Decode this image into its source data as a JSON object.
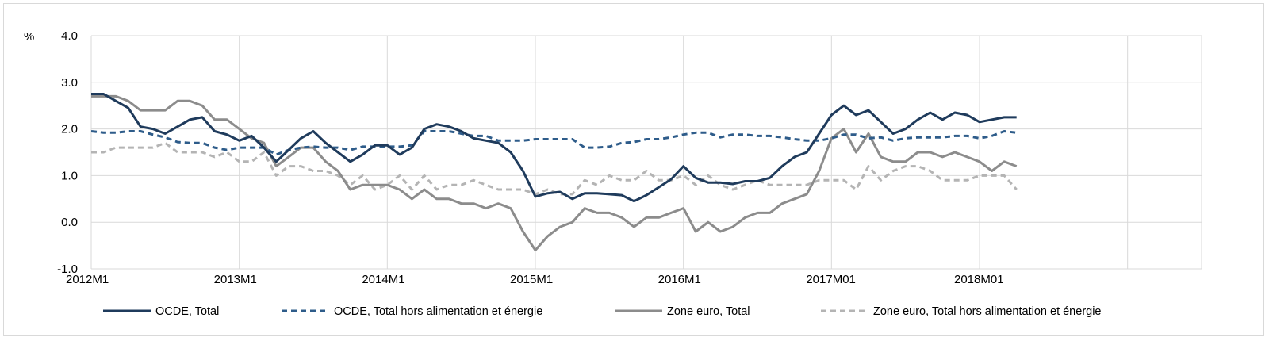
{
  "chart_data": {
    "type": "line",
    "unit_label": "%",
    "ylim": [
      -1.0,
      4.0
    ],
    "y_ticks": [
      "4.0",
      "3.0",
      "2.0",
      "1.0",
      "0.0",
      "-1.0"
    ],
    "x_start": "2012M1",
    "x_end": "2019M06",
    "x_tick_labels": [
      "2012M1",
      "2013M1",
      "2014M1",
      "2015M1",
      "2016M1",
      "2017M01",
      "2018M01"
    ],
    "grid": "vertical-and-horizontal",
    "legend_position": "bottom",
    "colors": {
      "ocde_total": "#1f3b5c",
      "ocde_core": "#2e5c8a",
      "euro_total": "#8c8c8c",
      "euro_core": "#b4b4b4"
    },
    "series": [
      {
        "name": "OCDE, Total",
        "style": "solid",
        "color_key": "ocde_total",
        "values": [
          2.75,
          2.75,
          2.6,
          2.45,
          2.05,
          2.0,
          1.9,
          2.05,
          2.2,
          2.25,
          1.95,
          1.88,
          1.75,
          1.85,
          1.6,
          1.3,
          1.55,
          1.8,
          1.95,
          1.7,
          1.5,
          1.3,
          1.45,
          1.65,
          1.65,
          1.45,
          1.6,
          2.0,
          2.1,
          2.05,
          1.95,
          1.8,
          1.75,
          1.7,
          1.5,
          1.1,
          0.55,
          0.62,
          0.65,
          0.5,
          0.62,
          0.62,
          0.6,
          0.58,
          0.45,
          0.58,
          0.75,
          0.92,
          1.2,
          0.95,
          0.85,
          0.85,
          0.82,
          0.88,
          0.88,
          0.95,
          1.2,
          1.4,
          1.5,
          1.9,
          2.3,
          2.5,
          2.3,
          2.4,
          2.15,
          1.9,
          2.0,
          2.2,
          2.35,
          2.2,
          2.35,
          2.3,
          2.15,
          2.2,
          2.25,
          2.25
        ]
      },
      {
        "name": "OCDE, Total hors alimentation et énergie",
        "style": "dashed",
        "color_key": "ocde_core",
        "values": [
          1.95,
          1.92,
          1.92,
          1.95,
          1.95,
          1.88,
          1.82,
          1.72,
          1.7,
          1.7,
          1.6,
          1.55,
          1.6,
          1.6,
          1.6,
          1.45,
          1.55,
          1.6,
          1.62,
          1.6,
          1.6,
          1.55,
          1.62,
          1.62,
          1.62,
          1.62,
          1.65,
          1.95,
          1.95,
          1.95,
          1.9,
          1.85,
          1.85,
          1.75,
          1.75,
          1.75,
          1.78,
          1.78,
          1.78,
          1.78,
          1.6,
          1.6,
          1.62,
          1.7,
          1.72,
          1.78,
          1.78,
          1.82,
          1.88,
          1.92,
          1.92,
          1.82,
          1.88,
          1.88,
          1.85,
          1.85,
          1.82,
          1.78,
          1.75,
          1.75,
          1.8,
          1.88,
          1.88,
          1.8,
          1.82,
          1.75,
          1.8,
          1.82,
          1.82,
          1.82,
          1.85,
          1.85,
          1.8,
          1.85,
          1.95,
          1.92
        ]
      },
      {
        "name": "Zone euro, Total",
        "style": "solid",
        "color_key": "euro_total",
        "values": [
          2.7,
          2.7,
          2.7,
          2.6,
          2.4,
          2.4,
          2.4,
          2.6,
          2.6,
          2.5,
          2.2,
          2.2,
          2.0,
          1.8,
          1.7,
          1.2,
          1.4,
          1.6,
          1.6,
          1.3,
          1.1,
          0.7,
          0.8,
          0.8,
          0.8,
          0.7,
          0.5,
          0.7,
          0.5,
          0.5,
          0.4,
          0.4,
          0.3,
          0.4,
          0.3,
          -0.2,
          -0.6,
          -0.3,
          -0.1,
          0.0,
          0.3,
          0.2,
          0.2,
          0.1,
          -0.1,
          0.1,
          0.1,
          0.2,
          0.3,
          -0.2,
          0.0,
          -0.2,
          -0.1,
          0.1,
          0.2,
          0.2,
          0.4,
          0.5,
          0.6,
          1.1,
          1.8,
          2.0,
          1.5,
          1.9,
          1.4,
          1.3,
          1.3,
          1.5,
          1.5,
          1.4,
          1.5,
          1.4,
          1.3,
          1.1,
          1.3,
          1.2
        ]
      },
      {
        "name": "Zone euro, Total hors alimentation et énergie",
        "style": "dashed",
        "color_key": "euro_core",
        "values": [
          1.5,
          1.5,
          1.6,
          1.6,
          1.6,
          1.6,
          1.7,
          1.5,
          1.5,
          1.5,
          1.4,
          1.5,
          1.3,
          1.3,
          1.5,
          1.0,
          1.2,
          1.2,
          1.1,
          1.1,
          1.0,
          0.8,
          1.0,
          0.7,
          0.8,
          1.0,
          0.7,
          1.0,
          0.7,
          0.8,
          0.8,
          0.9,
          0.8,
          0.7,
          0.7,
          0.7,
          0.6,
          0.7,
          0.6,
          0.6,
          0.9,
          0.8,
          1.0,
          0.9,
          0.9,
          1.1,
          0.9,
          0.9,
          1.0,
          0.8,
          1.0,
          0.8,
          0.7,
          0.8,
          0.9,
          0.8,
          0.8,
          0.8,
          0.8,
          0.9,
          0.9,
          0.9,
          0.7,
          1.2,
          0.9,
          1.1,
          1.2,
          1.2,
          1.1,
          0.9,
          0.9,
          0.9,
          1.0,
          1.0,
          1.0,
          0.7
        ]
      }
    ]
  }
}
